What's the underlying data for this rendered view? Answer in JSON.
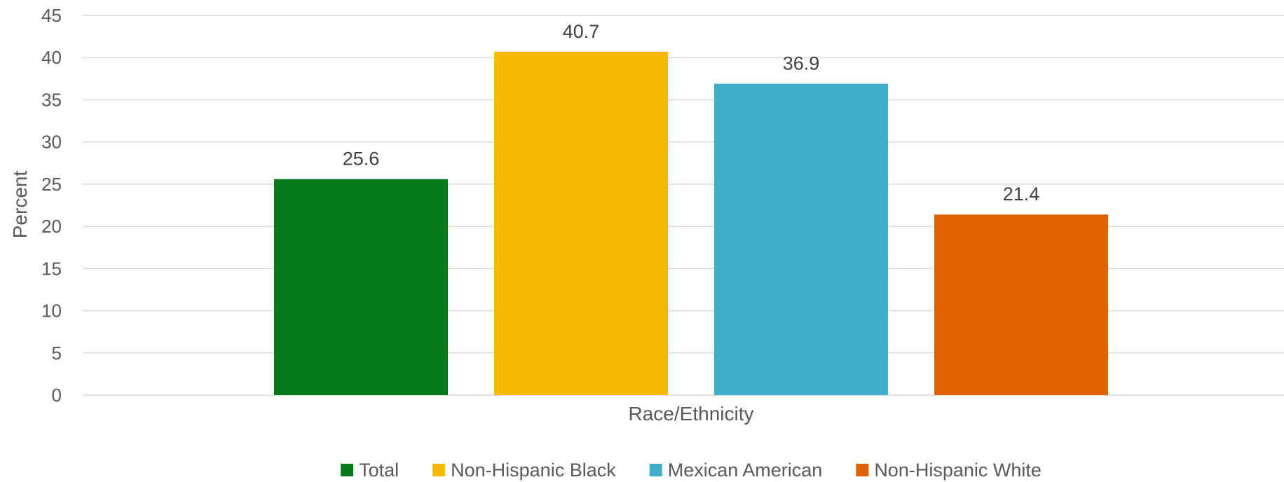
{
  "chart_data": {
    "type": "bar",
    "title": "",
    "xlabel": "Race/Ethnicity",
    "ylabel": "Percent",
    "ylim": [
      0,
      45
    ],
    "yticks": [
      0,
      5,
      10,
      15,
      20,
      25,
      30,
      35,
      40,
      45
    ],
    "grid": true,
    "legend_position": "bottom",
    "categories": [
      "Race/Ethnicity"
    ],
    "series": [
      {
        "name": "Total",
        "values": [
          25.6
        ],
        "color": "#077B1B",
        "label": "25.6"
      },
      {
        "name": "Non-Hispanic Black",
        "values": [
          40.7
        ],
        "color": "#F5BA00",
        "label": "40.7"
      },
      {
        "name": "Mexican American",
        "values": [
          36.9
        ],
        "color": "#3FADC8",
        "label": "36.9"
      },
      {
        "name": "Non-Hispanic White",
        "values": [
          21.4
        ],
        "color": "#DE6300",
        "label": "21.4"
      }
    ]
  }
}
